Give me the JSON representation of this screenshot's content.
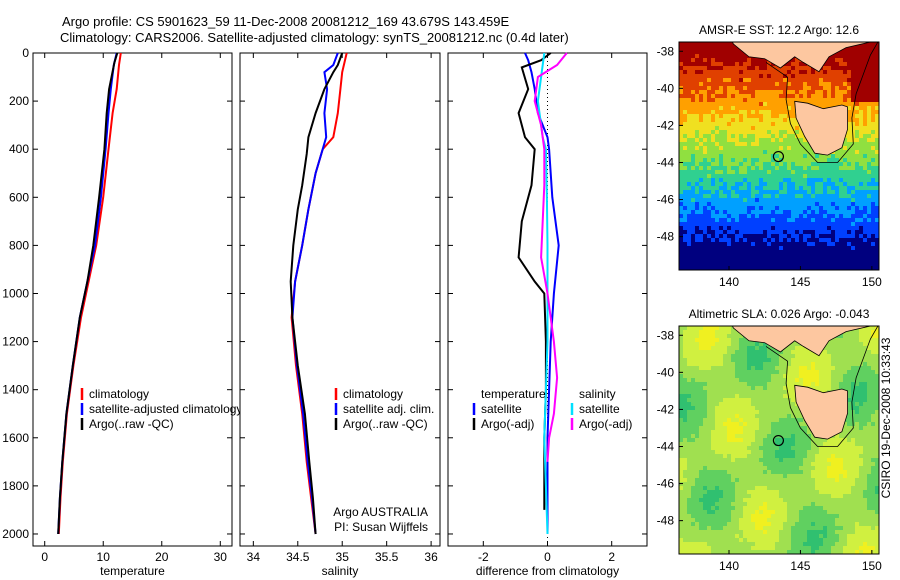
{
  "header": {
    "line1": "Argo profile: CS 5901623_59 11-Dec-2008 20081212_169 43.679S 143.459E",
    "line2": "Climatology: CARS2006. Satellite-adjusted climatology: synTS_20081212.nc (0.4d later)"
  },
  "side_label": "CSIRO 19-Dec-2008 10:33:43",
  "chart_data": [
    {
      "id": "temperature_panel",
      "type": "line",
      "xlabel": "temperature",
      "ylabel": "",
      "xlim": [
        -2,
        32
      ],
      "ylim": [
        2050,
        0
      ],
      "x_ticks": [
        0,
        10,
        20,
        30
      ],
      "y_ticks": [
        0,
        200,
        400,
        600,
        800,
        1000,
        1200,
        1400,
        1600,
        1800,
        2000
      ],
      "legend": {
        "placement": "lower-center",
        "entries": [
          "climatology",
          "satellite-adjusted climatology",
          "Argo(..raw -QC)"
        ]
      },
      "series": [
        {
          "name": "climatology",
          "color": "#ff0000",
          "points": [
            [
              13.0,
              0
            ],
            [
              12.7,
              50
            ],
            [
              12.3,
              150
            ],
            [
              11.6,
              250
            ],
            [
              10.9,
              400
            ],
            [
              10.0,
              600
            ],
            [
              8.8,
              800
            ],
            [
              7.5,
              950
            ],
            [
              6.2,
              1100
            ],
            [
              4.9,
              1300
            ],
            [
              3.8,
              1500
            ],
            [
              3.1,
              1700
            ],
            [
              2.7,
              1850
            ],
            [
              2.4,
              2000
            ]
          ]
        },
        {
          "name": "satellite-adjusted climatology",
          "color": "#0000ff",
          "points": [
            [
              12.3,
              0
            ],
            [
              11.8,
              50
            ],
            [
              11.3,
              150
            ],
            [
              10.9,
              250
            ],
            [
              10.4,
              400
            ],
            [
              9.6,
              600
            ],
            [
              8.6,
              800
            ],
            [
              7.3,
              950
            ],
            [
              6.0,
              1100
            ],
            [
              4.8,
              1300
            ],
            [
              3.7,
              1500
            ],
            [
              3.0,
              1700
            ],
            [
              2.6,
              1850
            ],
            [
              2.3,
              2000
            ]
          ]
        },
        {
          "name": "Argo(..raw -QC)",
          "color": "#000000",
          "points": [
            [
              12.4,
              0
            ],
            [
              11.9,
              40
            ],
            [
              11.0,
              150
            ],
            [
              10.6,
              250
            ],
            [
              10.2,
              400
            ],
            [
              9.3,
              600
            ],
            [
              8.3,
              800
            ],
            [
              7.3,
              950
            ],
            [
              6.0,
              1100
            ],
            [
              4.8,
              1300
            ],
            [
              3.7,
              1500
            ],
            [
              3.0,
              1700
            ],
            [
              2.6,
              1850
            ],
            [
              2.3,
              2000
            ]
          ]
        }
      ]
    },
    {
      "id": "salinity_panel",
      "type": "line",
      "xlabel": "salinity",
      "ylabel": "",
      "xlim": [
        33.85,
        36.1
      ],
      "ylim": [
        2050,
        0
      ],
      "x_ticks": [
        34,
        34.5,
        35,
        35.5,
        36
      ],
      "x_tick_labels": [
        "34",
        "34.5",
        "35",
        "35.5",
        "36"
      ],
      "legend": {
        "placement": "lower-center",
        "entries": [
          "climatology",
          "satellite adj. clim.",
          "Argo(..raw -QC)"
        ]
      },
      "annotations": [
        "Argo AUSTRALIA",
        "PI: Susan Wijffels"
      ],
      "series": [
        {
          "name": "climatology",
          "color": "#ff0000",
          "points": [
            [
              35.05,
              0
            ],
            [
              35.0,
              80
            ],
            [
              34.98,
              150
            ],
            [
              34.95,
              250
            ],
            [
              34.9,
              350
            ],
            [
              34.78,
              400
            ],
            [
              34.7,
              500
            ],
            [
              34.62,
              650
            ],
            [
              34.55,
              800
            ],
            [
              34.47,
              950
            ],
            [
              34.43,
              1100
            ],
            [
              34.48,
              1300
            ],
            [
              34.55,
              1500
            ],
            [
              34.6,
              1700
            ],
            [
              34.65,
              1850
            ],
            [
              34.7,
              2000
            ]
          ]
        },
        {
          "name": "satellite adj. clim.",
          "color": "#0000ff",
          "points": [
            [
              34.95,
              0
            ],
            [
              34.9,
              50
            ],
            [
              34.8,
              80
            ],
            [
              34.83,
              150
            ],
            [
              34.8,
              250
            ],
            [
              34.82,
              350
            ],
            [
              34.78,
              400
            ],
            [
              34.7,
              500
            ],
            [
              34.62,
              650
            ],
            [
              34.55,
              800
            ],
            [
              34.47,
              950
            ],
            [
              34.44,
              1100
            ],
            [
              34.49,
              1300
            ],
            [
              34.56,
              1500
            ],
            [
              34.61,
              1700
            ],
            [
              34.66,
              1850
            ],
            [
              34.7,
              2000
            ]
          ]
        },
        {
          "name": "Argo(..raw -QC)",
          "color": "#000000",
          "points": [
            [
              35.0,
              0
            ],
            [
              34.95,
              50
            ],
            [
              34.9,
              80
            ],
            [
              34.8,
              150
            ],
            [
              34.7,
              250
            ],
            [
              34.62,
              350
            ],
            [
              34.6,
              420
            ],
            [
              34.55,
              550
            ],
            [
              34.5,
              650
            ],
            [
              34.45,
              800
            ],
            [
              34.42,
              950
            ],
            [
              34.44,
              1100
            ],
            [
              34.5,
              1300
            ],
            [
              34.58,
              1500
            ],
            [
              34.63,
              1700
            ],
            [
              34.67,
              1850
            ],
            [
              34.7,
              2000
            ]
          ]
        }
      ]
    },
    {
      "id": "difference_panel",
      "type": "line",
      "xlabel": "difference from climatology",
      "ylabel": "",
      "xlim": [
        -3.1,
        3.1
      ],
      "ylim": [
        2050,
        0
      ],
      "x_ticks": [
        -2,
        0,
        2
      ],
      "zero_line": true,
      "legend": {
        "placement": "lower-center",
        "columns": [
          {
            "title": "temperature",
            "entries": [
              "satellite",
              "Argo(-adj)"
            ]
          },
          {
            "title": "salinity",
            "entries": [
              "satellite",
              "Argo(-adj)"
            ]
          }
        ]
      },
      "series": [
        {
          "name": "temperature satellite",
          "color": "#0000ff",
          "points": [
            [
              -0.7,
              0
            ],
            [
              -0.6,
              30
            ],
            [
              -0.5,
              80
            ],
            [
              -0.4,
              150
            ],
            [
              -0.3,
              250
            ],
            [
              0.0,
              350
            ],
            [
              0.05,
              400
            ],
            [
              0.15,
              600
            ],
            [
              0.35,
              800
            ],
            [
              0.2,
              1000
            ],
            [
              0.1,
              1200
            ],
            [
              0.05,
              1400
            ],
            [
              0.0,
              1600
            ],
            [
              0.0,
              2000
            ]
          ]
        },
        {
          "name": "temperature Argo(-adj)",
          "color": "#000000",
          "points": [
            [
              0.1,
              0
            ],
            [
              -0.2,
              30
            ],
            [
              -0.8,
              60
            ],
            [
              -0.6,
              150
            ],
            [
              -0.9,
              250
            ],
            [
              -0.7,
              350
            ],
            [
              -0.4,
              400
            ],
            [
              -0.5,
              550
            ],
            [
              -0.8,
              700
            ],
            [
              -0.9,
              850
            ],
            [
              -0.4,
              950
            ],
            [
              -0.1,
              1000
            ],
            [
              -0.05,
              1200
            ],
            [
              -0.05,
              1400
            ],
            [
              -0.1,
              1600
            ],
            [
              -0.1,
              1900
            ]
          ]
        },
        {
          "name": "salinity satellite",
          "color": "#00e0ff",
          "points": [
            [
              -0.1,
              0
            ],
            [
              -0.2,
              100
            ],
            [
              -0.3,
              200
            ],
            [
              -0.15,
              350
            ],
            [
              -0.05,
              400
            ],
            [
              -0.02,
              600
            ],
            [
              0.0,
              800
            ],
            [
              0.0,
              1000
            ],
            [
              0.0,
              1200
            ],
            [
              -0.05,
              1400
            ],
            [
              -0.1,
              1600
            ],
            [
              0.0,
              2000
            ]
          ]
        },
        {
          "name": "salinity Argo(-adj)",
          "color": "#ff00ff",
          "points": [
            [
              0.6,
              0
            ],
            [
              0.3,
              50
            ],
            [
              -0.3,
              100
            ],
            [
              -0.4,
              200
            ],
            [
              -0.2,
              300
            ],
            [
              -0.1,
              400
            ],
            [
              -0.1,
              550
            ],
            [
              -0.15,
              700
            ],
            [
              -0.2,
              850
            ],
            [
              0.0,
              1000
            ],
            [
              0.2,
              1200
            ],
            [
              0.3,
              1350
            ],
            [
              0.2,
              1500
            ],
            [
              0.05,
              1600
            ],
            [
              0.0,
              1700
            ]
          ]
        }
      ]
    },
    {
      "id": "sst_map",
      "type": "heatmap",
      "title": "AMSR-E SST: 12.2 Argo: 12.6",
      "xlim": [
        136.5,
        150.5
      ],
      "ylim": [
        -49.8,
        -37.5
      ],
      "x_ticks": [
        140,
        145,
        150
      ],
      "y_ticks": [
        -38,
        -40,
        -42,
        -44,
        -46,
        -48
      ],
      "marker": {
        "lon": 143.459,
        "lat": -43.679
      },
      "colors": [
        "#00007f",
        "#0040ff",
        "#00a0ff",
        "#30d090",
        "#90e040",
        "#f0e020",
        "#ffa000",
        "#e04000",
        "#a00000"
      ]
    },
    {
      "id": "sla_map",
      "type": "heatmap",
      "title": "Altimetric SLA: 0.026 Argo: -0.043",
      "xlim": [
        136.5,
        150.5
      ],
      "ylim": [
        -49.8,
        -37.5
      ],
      "x_ticks": [
        140,
        145,
        150
      ],
      "y_ticks": [
        -38,
        -40,
        -42,
        -44,
        -46,
        -48
      ],
      "marker": {
        "lon": 143.459,
        "lat": -43.679
      },
      "colors": [
        "#30c070",
        "#60d060",
        "#a0e050",
        "#d0f040",
        "#f0f020"
      ]
    }
  ]
}
